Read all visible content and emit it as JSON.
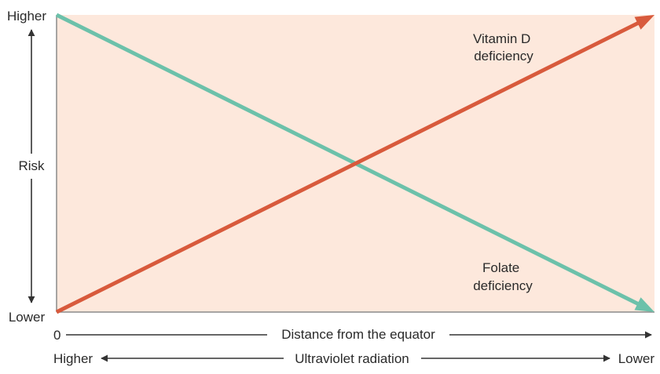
{
  "chart_data": {
    "type": "line",
    "xlabel": "Distance from the equator",
    "x_origin_label": "0",
    "secondary_xlabel": "Ultraviolet radiation",
    "secondary_x_left": "Higher",
    "secondary_x_right": "Lower",
    "ylabel": "Risk",
    "y_top_label": "Higher",
    "y_bottom_label": "Lower",
    "xlim": [
      0,
      1
    ],
    "ylim": [
      0,
      1
    ],
    "series": [
      {
        "name": "Vitamin D deficiency",
        "label_lines": [
          "Vitamin D",
          "deficiency"
        ],
        "color": "#d85a3c",
        "x": [
          0,
          1
        ],
        "y": [
          0,
          1
        ]
      },
      {
        "name": "Folate deficiency",
        "label_lines": [
          "Folate",
          "deficiency"
        ],
        "color": "#6cc1aa",
        "x": [
          0,
          1
        ],
        "y": [
          1,
          0
        ]
      }
    ],
    "plot_background": "#fde8dc",
    "axis_color": "#8a8a8a",
    "arrow_color": "#333333"
  }
}
